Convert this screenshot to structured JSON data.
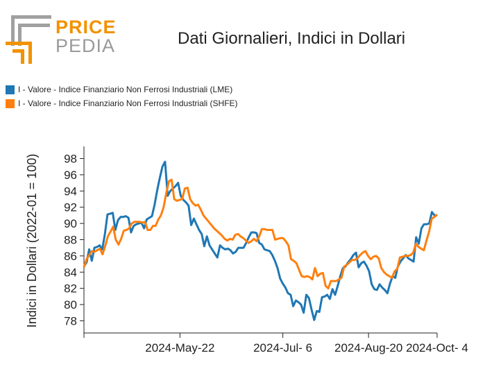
{
  "logo": {
    "word_top": "PRICE",
    "word_bottom": "PEDIA",
    "color_orange": "#f29200",
    "color_gray": "#9a9a9a"
  },
  "chart_data": {
    "type": "line",
    "title": "Dati Giornalieri, Indici in Dollari",
    "ylabel": "Indici in Dollari (2022-01 = 100)",
    "xlabel": "",
    "ylim": [
      76.5,
      99.5
    ],
    "yticks": [
      78,
      80,
      82,
      84,
      86,
      88,
      90,
      92,
      94,
      96,
      98
    ],
    "xlim": [
      0,
      103
    ],
    "xtick_labels": [
      {
        "label": "2024-May-22",
        "index": 28
      },
      {
        "label": "2024-Jul- 6",
        "index": 58
      },
      {
        "label": "2024-Aug-20",
        "index": 83
      },
      {
        "label": "2024-Oct- 4",
        "index": 103
      }
    ],
    "series": [
      {
        "name": "I - Valore - Indice Finanziario Non Ferrosi Industriali (LME)",
        "color": "#1f77b4",
        "values": [
          84.7,
          85.2,
          86.8,
          85.4,
          87.0,
          87.1,
          87.3,
          86.8,
          88.7,
          91.1,
          91.2,
          91.3,
          89.2,
          90.4,
          90.8,
          90.8,
          90.9,
          90.7,
          88.9,
          89.7,
          89.9,
          90.0,
          90.1,
          89.4,
          90.5,
          90.7,
          90.9,
          92.3,
          94.1,
          95.6,
          97.0,
          97.6,
          93.4,
          94.0,
          94.3,
          94.6,
          95.0,
          93.4,
          92.9,
          92.6,
          92.2,
          89.8,
          90.6,
          89.9,
          89.2,
          88.7,
          87.2,
          88.4,
          87.3,
          86.8,
          86.3,
          85.8,
          87.3,
          87.0,
          86.8,
          86.9,
          86.7,
          86.3,
          86.5,
          87.0,
          87.0,
          87.0,
          87.6,
          88.3,
          88.9,
          88.9,
          88.8,
          87.6,
          87.4,
          86.8,
          86.7,
          86.6,
          86.1,
          85.4,
          84.5,
          83.2,
          82.6,
          82.1,
          81.4,
          81.2,
          79.8,
          80.5,
          80.3,
          80.0,
          79.0,
          81.2,
          80.8,
          79.4,
          78.1,
          79.2,
          79.1,
          80.9,
          81.0,
          81.2,
          80.7,
          81.9,
          81.2,
          82.3,
          83.5,
          84.5,
          84.7,
          85.2,
          85.6,
          86.1,
          86.4,
          84.6,
          85.1,
          85.3,
          84.8,
          84.1,
          82.5,
          81.9,
          81.8,
          82.5,
          82.1,
          81.8,
          81.4,
          82.6,
          83.5,
          83.3,
          84.7,
          85.3,
          85.7,
          86.1,
          85.7,
          85.5,
          85.3,
          88.3,
          87.5,
          89.4,
          89.9,
          89.9,
          90.0,
          91.4,
          91.0,
          91.0
        ]
      },
      {
        "name": "I - Valore - Indice Finanziario Non Ferrosi Industriali (SHFE)",
        "color": "#ff7f0e",
        "values": [
          84.6,
          85.6,
          86.1,
          86.6,
          86.5,
          86.7,
          86.9,
          86.2,
          87.2,
          88.4,
          89.0,
          89.6,
          88.0,
          87.4,
          88.1,
          89.1,
          89.2,
          89.4,
          90.0,
          90.2,
          90.2,
          90.2,
          90.1,
          90.2,
          89.2,
          89.2,
          89.7,
          89.7,
          90.5,
          91.0,
          92.0,
          93.7,
          95.2,
          95.4,
          93.0,
          92.8,
          92.9,
          93.0,
          94.3,
          94.4,
          93.0,
          92.5,
          92.2,
          92.3,
          91.7,
          91.0,
          90.6,
          90.2,
          89.8,
          89.4,
          89.1,
          88.8,
          88.5,
          88.1,
          87.9,
          88.1,
          88.0,
          88.6,
          88.7,
          88.4,
          88.2,
          87.9,
          87.6,
          87.8,
          88.1,
          87.8,
          88.4,
          89.3,
          89.3,
          89.2,
          89.2,
          89.2,
          88.0,
          88.1,
          88.2,
          88.2,
          87.8,
          87.3,
          85.6,
          85.4,
          85.1,
          84.3,
          83.5,
          83.4,
          83.5,
          83.4,
          83.1,
          84.5,
          83.5,
          83.8,
          83.9,
          82.3,
          82.0,
          82.9,
          82.9,
          82.9,
          83.1,
          83.3,
          84.7,
          84.9,
          85.2,
          85.5,
          85.5,
          85.7,
          86.1,
          86.4,
          86.6,
          86.0,
          85.6,
          85.9,
          86.0,
          85.7,
          84.5,
          84.0,
          83.7,
          83.5,
          83.3,
          84.1,
          84.4,
          85.8,
          85.9,
          86.0,
          86.0,
          86.1,
          86.4,
          87.5,
          87.1,
          86.9,
          86.7,
          87.9,
          89.0,
          90.6,
          90.8,
          91.1
        ]
      }
    ]
  }
}
